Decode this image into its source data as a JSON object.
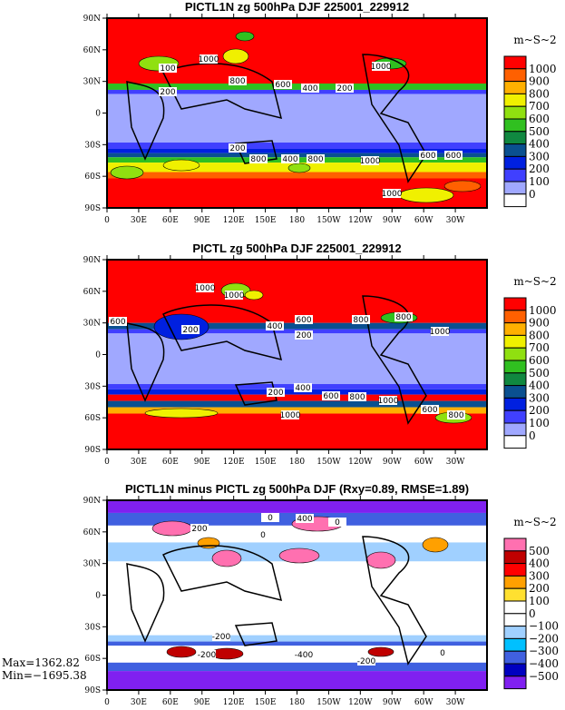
{
  "panels": [
    {
      "title": "PICTL1N zg 500hPa DJF 225001_229912",
      "units": "m~S~2",
      "levels": [
        "1000",
        "900",
        "800",
        "700",
        "600",
        "500",
        "400",
        "300",
        "200",
        "100",
        "0"
      ],
      "colors": [
        "#ff0000",
        "#ff6000",
        "#ffb000",
        "#f0f000",
        "#90e010",
        "#30c020",
        "#108840",
        "#0a5090",
        "#0020e0",
        "#4040ff",
        "#a0a8ff",
        "#ffffff"
      ],
      "contour_labels": [
        "1000",
        "100",
        "800",
        "200",
        "600",
        "400",
        "200",
        "1000",
        "200",
        "400",
        "800",
        "800",
        "1000",
        "600",
        "600",
        "1000"
      ]
    },
    {
      "title": "PICTL zg 500hPa DJF 225001_229912",
      "units": "m~S~2",
      "levels": [
        "1000",
        "900",
        "800",
        "700",
        "600",
        "500",
        "400",
        "300",
        "200",
        "100",
        "0"
      ],
      "colors": [
        "#ff0000",
        "#ff6000",
        "#ffb000",
        "#f0f000",
        "#90e010",
        "#30c020",
        "#108840",
        "#0a5090",
        "#0020e0",
        "#4040ff",
        "#a0a8ff",
        "#ffffff"
      ],
      "contour_labels": [
        "1000",
        "1000",
        "600",
        "200",
        "400",
        "600",
        "200",
        "800",
        "1000",
        "800",
        "200",
        "400",
        "600",
        "800",
        "1000",
        "600",
        "800",
        "1000"
      ]
    },
    {
      "title": "PICTL1N minus PICTL zg 500hPa DJF (Rxy=0.89, RMSE=1.89)",
      "units": "m~S~2",
      "levels": [
        "500",
        "400",
        "300",
        "200",
        "100",
        "0",
        "−100",
        "−200",
        "−300",
        "−400",
        "−500"
      ],
      "colors": [
        "#ff70b0",
        "#c00000",
        "#ff0000",
        "#ffa000",
        "#ffe030",
        "#ffffff",
        "#ffffff",
        "#a0d0ff",
        "#00c0ff",
        "#4060e0",
        "#0000c0",
        "#8020f0"
      ],
      "contour_labels": [
        "200",
        "0",
        "400",
        "0",
        "0",
        "-200",
        "-200",
        "-400",
        "-200",
        "0"
      ]
    }
  ],
  "lat_labels": [
    "90N",
    "60N",
    "30N",
    "0",
    "30S",
    "60S",
    "90S"
  ],
  "lon_labels": [
    "0",
    "30E",
    "60E",
    "90E",
    "120E",
    "150E",
    "180",
    "150W",
    "120W",
    "90W",
    "60W",
    "30W"
  ],
  "stats": {
    "max": "Max=1362.82",
    "min": "Min=−1695.38"
  }
}
